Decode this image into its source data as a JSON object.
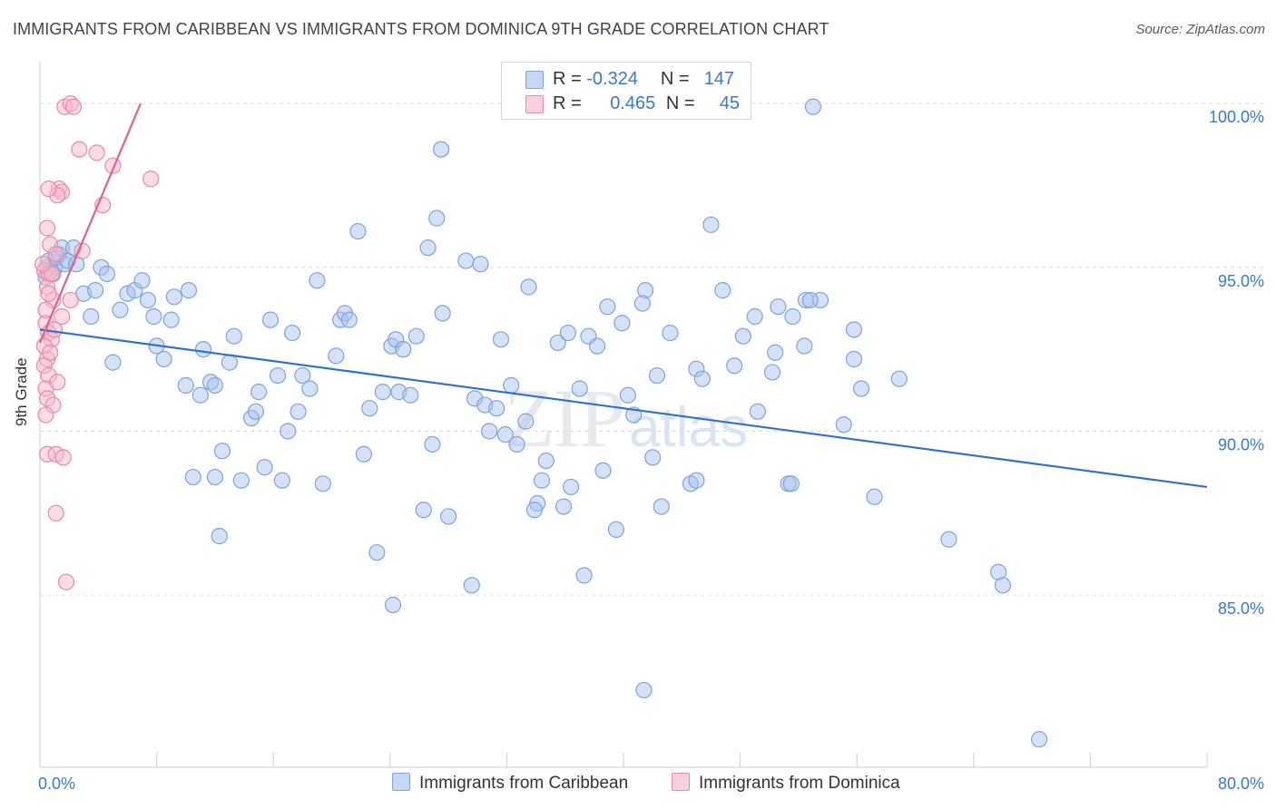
{
  "header": {
    "title": "IMMIGRANTS FROM CARIBBEAN VS IMMIGRANTS FROM DOMINICA 9TH GRADE CORRELATION CHART",
    "source": "Source: ZipAtlas.com"
  },
  "watermark": {
    "zip": "ZIP",
    "atlas": "atlas"
  },
  "legend": {
    "r_label": "R =",
    "n_label": "N =",
    "rows": [
      {
        "r": "-0.324",
        "n": "147",
        "color": "#a9c4ee",
        "border": "#7fa3dc"
      },
      {
        "r": "0.465",
        "n": "45",
        "color": "#f7b9cb",
        "border": "#e88aa6"
      }
    ]
  },
  "chart_data": {
    "type": "scatter",
    "title": "IMMIGRANTS FROM CARIBBEAN VS IMMIGRANTS FROM DOMINICA 9TH GRADE CORRELATION CHART",
    "xlabel": "",
    "ylabel": "9th Grade",
    "xlim": [
      0,
      80
    ],
    "ylim": [
      80.3,
      101.0
    ],
    "x_tick_labels": [
      "0.0%",
      "80.0%"
    ],
    "y_ticks": [
      85,
      90,
      95,
      100
    ],
    "y_tick_labels": [
      "85.0%",
      "90.0%",
      "95.0%",
      "100.0%"
    ],
    "grid": "horizontal dashed",
    "legend_position": "top-center",
    "series": [
      {
        "name": "Immigrants from Caribbean",
        "color": "#a9c4ee",
        "stroke": "#7fa3dc",
        "trend": {
          "color": "#2f6fd0",
          "x": [
            0,
            80
          ],
          "y": [
            93.1,
            88.3
          ]
        },
        "points": [
          [
            0.4,
            94.7
          ],
          [
            0.5,
            95.0
          ],
          [
            0.6,
            95.2
          ],
          [
            0.9,
            94.8
          ],
          [
            1.0,
            95.0
          ],
          [
            1.1,
            95.3
          ],
          [
            1.3,
            95.4
          ],
          [
            1.5,
            95.6
          ],
          [
            1.7,
            95.1
          ],
          [
            1.9,
            95.2
          ],
          [
            2.3,
            95.6
          ],
          [
            2.5,
            95.1
          ],
          [
            3.0,
            94.2
          ],
          [
            3.8,
            94.3
          ],
          [
            4.2,
            95.0
          ],
          [
            4.6,
            94.8
          ],
          [
            3.5,
            93.5
          ],
          [
            5.0,
            92.1
          ],
          [
            5.5,
            93.7
          ],
          [
            6.0,
            94.2
          ],
          [
            6.5,
            94.3
          ],
          [
            7.0,
            94.6
          ],
          [
            7.4,
            94.0
          ],
          [
            7.8,
            93.5
          ],
          [
            8.0,
            92.6
          ],
          [
            8.5,
            92.2
          ],
          [
            9.0,
            93.4
          ],
          [
            9.2,
            94.1
          ],
          [
            10.2,
            94.3
          ],
          [
            10.0,
            91.4
          ],
          [
            10.5,
            88.6
          ],
          [
            11.0,
            91.1
          ],
          [
            11.2,
            92.5
          ],
          [
            11.7,
            91.5
          ],
          [
            12.0,
            88.6
          ],
          [
            12.0,
            91.4
          ],
          [
            12.5,
            89.4
          ],
          [
            13.0,
            92.1
          ],
          [
            13.3,
            92.9
          ],
          [
            12.3,
            86.8
          ],
          [
            13.8,
            88.5
          ],
          [
            14.5,
            90.4
          ],
          [
            14.8,
            90.6
          ],
          [
            15.0,
            91.2
          ],
          [
            15.4,
            88.9
          ],
          [
            15.8,
            93.4
          ],
          [
            16.3,
            91.7
          ],
          [
            16.6,
            88.5
          ],
          [
            17.0,
            90.0
          ],
          [
            17.3,
            93.0
          ],
          [
            17.7,
            90.6
          ],
          [
            18.0,
            91.7
          ],
          [
            18.5,
            91.3
          ],
          [
            19.0,
            94.6
          ],
          [
            19.4,
            88.4
          ],
          [
            20.3,
            92.3
          ],
          [
            20.6,
            93.4
          ],
          [
            20.9,
            93.6
          ],
          [
            21.2,
            93.4
          ],
          [
            21.8,
            96.1
          ],
          [
            22.2,
            89.3
          ],
          [
            22.6,
            90.7
          ],
          [
            23.1,
            86.3
          ],
          [
            23.5,
            91.2
          ],
          [
            24.1,
            92.6
          ],
          [
            24.4,
            92.8
          ],
          [
            24.6,
            91.2
          ],
          [
            24.9,
            92.5
          ],
          [
            25.4,
            91.1
          ],
          [
            25.8,
            92.9
          ],
          [
            24.2,
            84.7
          ],
          [
            26.3,
            87.6
          ],
          [
            26.6,
            95.6
          ],
          [
            26.9,
            89.6
          ],
          [
            27.2,
            96.5
          ],
          [
            27.6,
            93.6
          ],
          [
            28.0,
            87.4
          ],
          [
            29.2,
            95.2
          ],
          [
            29.6,
            85.3
          ],
          [
            29.8,
            91.0
          ],
          [
            30.2,
            95.1
          ],
          [
            30.5,
            90.8
          ],
          [
            30.8,
            90.0
          ],
          [
            31.3,
            90.7
          ],
          [
            31.6,
            92.8
          ],
          [
            31.9,
            89.9
          ],
          [
            32.3,
            91.4
          ],
          [
            32.7,
            89.6
          ],
          [
            33.3,
            90.3
          ],
          [
            33.5,
            94.4
          ],
          [
            34.1,
            87.8
          ],
          [
            34.4,
            88.5
          ],
          [
            34.7,
            89.1
          ],
          [
            33.9,
            87.6
          ],
          [
            35.5,
            92.7
          ],
          [
            35.9,
            87.7
          ],
          [
            36.2,
            93.0
          ],
          [
            36.4,
            88.3
          ],
          [
            37.0,
            91.3
          ],
          [
            37.3,
            85.6
          ],
          [
            37.6,
            92.9
          ],
          [
            38.2,
            92.6
          ],
          [
            38.6,
            88.8
          ],
          [
            38.9,
            93.8
          ],
          [
            39.5,
            87.0
          ],
          [
            40.3,
            91.1
          ],
          [
            40.7,
            90.5
          ],
          [
            39.9,
            93.3
          ],
          [
            41.5,
            94.3
          ],
          [
            41.3,
            93.9
          ],
          [
            42.0,
            89.2
          ],
          [
            42.3,
            91.7
          ],
          [
            42.6,
            87.7
          ],
          [
            43.2,
            93.0
          ],
          [
            44.6,
            88.4
          ],
          [
            45.0,
            88.5
          ],
          [
            45.0,
            91.9
          ],
          [
            45.4,
            91.6
          ],
          [
            46.0,
            96.3
          ],
          [
            46.8,
            94.3
          ],
          [
            47.6,
            92.0
          ],
          [
            48.2,
            92.9
          ],
          [
            49.0,
            93.5
          ],
          [
            49.2,
            90.6
          ],
          [
            50.2,
            91.8
          ],
          [
            50.4,
            92.4
          ],
          [
            50.6,
            93.8
          ],
          [
            51.6,
            93.5
          ],
          [
            51.3,
            88.4
          ],
          [
            52.4,
            92.6
          ],
          [
            52.5,
            94.0
          ],
          [
            53.5,
            94.0
          ],
          [
            51.5,
            88.4
          ],
          [
            55.1,
            90.2
          ],
          [
            52.8,
            94.0
          ],
          [
            53.0,
            99.9
          ],
          [
            56.3,
            91.3
          ],
          [
            55.8,
            92.2
          ],
          [
            55.8,
            93.1
          ],
          [
            57.2,
            88.0
          ],
          [
            58.9,
            91.6
          ],
          [
            62.3,
            86.7
          ],
          [
            65.7,
            85.7
          ],
          [
            66.0,
            85.3
          ],
          [
            41.4,
            82.1
          ],
          [
            27.5,
            98.6
          ],
          [
            68.5,
            80.6
          ]
        ]
      },
      {
        "name": "Immigrants from Dominica",
        "color": "#f7b9cb",
        "stroke": "#e88aa6",
        "trend": {
          "color": "#e0608d",
          "x": [
            0,
            6.9
          ],
          "y": [
            92.7,
            100.0
          ]
        },
        "points": [
          [
            1.7,
            99.9
          ],
          [
            2.1,
            100.0
          ],
          [
            2.3,
            99.9
          ],
          [
            2.7,
            98.6
          ],
          [
            3.9,
            98.5
          ],
          [
            5.0,
            98.1
          ],
          [
            7.6,
            97.7
          ],
          [
            1.3,
            97.4
          ],
          [
            1.5,
            97.3
          ],
          [
            1.2,
            97.2
          ],
          [
            0.6,
            97.4
          ],
          [
            4.3,
            96.9
          ],
          [
            0.5,
            96.2
          ],
          [
            0.7,
            95.7
          ],
          [
            1.1,
            95.4
          ],
          [
            2.9,
            95.5
          ],
          [
            0.3,
            94.9
          ],
          [
            0.6,
            94.8
          ],
          [
            0.5,
            94.4
          ],
          [
            0.9,
            94.0
          ],
          [
            1.5,
            93.5
          ],
          [
            2.1,
            94.0
          ],
          [
            0.4,
            93.3
          ],
          [
            0.6,
            93.0
          ],
          [
            0.8,
            92.8
          ],
          [
            0.3,
            92.6
          ],
          [
            0.5,
            92.2
          ],
          [
            0.3,
            92.0
          ],
          [
            0.6,
            91.7
          ],
          [
            0.4,
            91.3
          ],
          [
            0.5,
            91.0
          ],
          [
            0.9,
            90.8
          ],
          [
            0.4,
            90.5
          ],
          [
            0.5,
            89.3
          ],
          [
            1.1,
            89.3
          ],
          [
            1.6,
            89.2
          ],
          [
            1.1,
            87.5
          ],
          [
            1.8,
            85.4
          ],
          [
            0.8,
            94.8
          ],
          [
            1.0,
            93.1
          ],
          [
            0.2,
            95.1
          ],
          [
            0.7,
            92.4
          ],
          [
            1.2,
            91.5
          ],
          [
            0.4,
            93.7
          ],
          [
            0.6,
            94.2
          ]
        ]
      }
    ]
  },
  "bottom_legend": {
    "items": [
      {
        "label": "Immigrants from Caribbean",
        "color": "#a9c4ee",
        "border": "#7fa3dc"
      },
      {
        "label": "Immigrants from Dominica",
        "color": "#f7b9cb",
        "border": "#e88aa6"
      }
    ]
  }
}
